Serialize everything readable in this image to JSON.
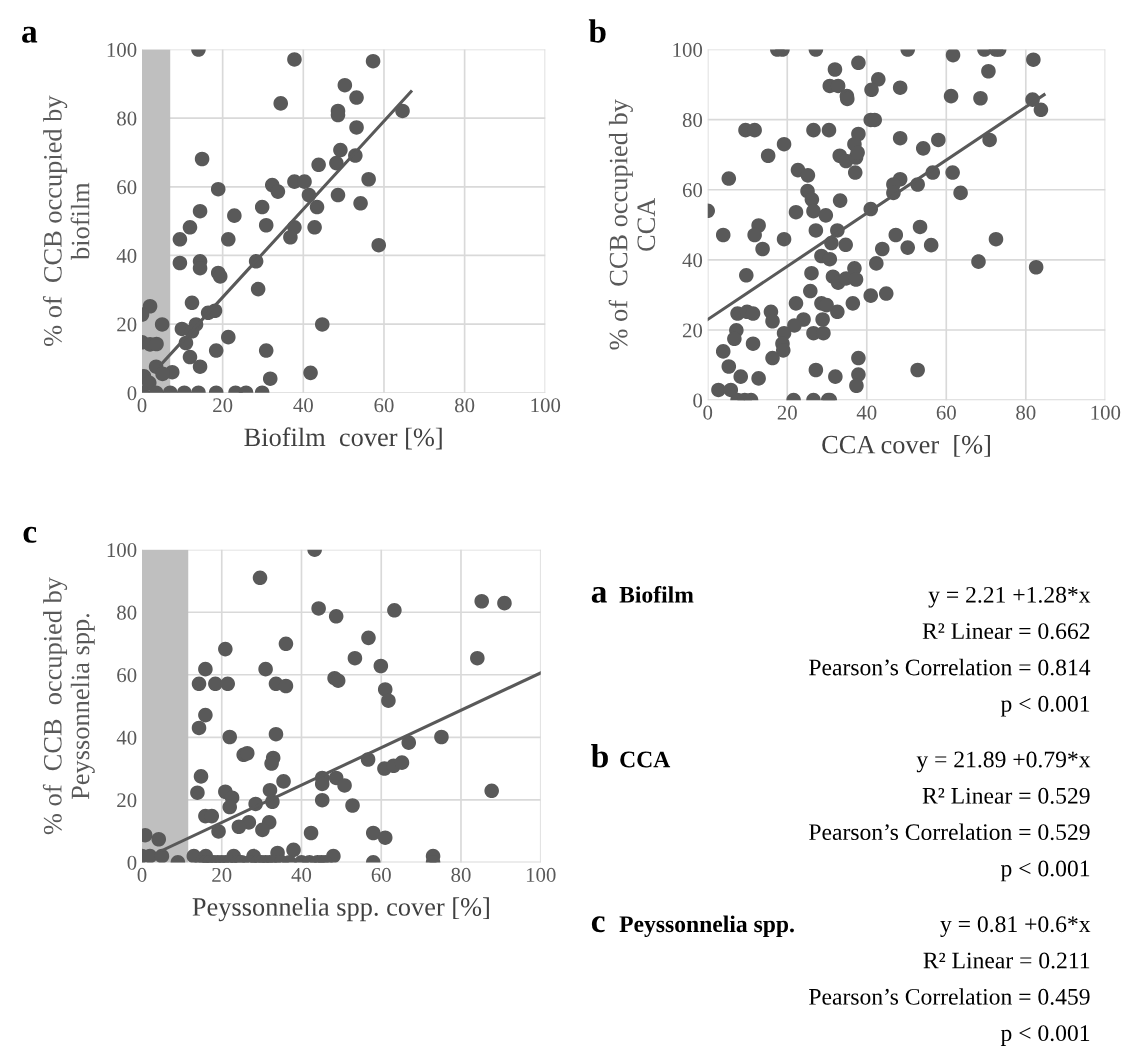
{
  "chart_data": [
    {
      "type": "scatter",
      "title": "a",
      "xlabel": "Biofilm  cover [%]",
      "ylabel": "% of  CCB occupied by\nbiofilm",
      "xlim": [
        0,
        100
      ],
      "ylim": [
        0,
        100
      ],
      "xticks": [
        0,
        20,
        40,
        60,
        80,
        100
      ],
      "yticks": [
        0,
        20,
        40,
        60,
        80,
        100
      ],
      "grid": true,
      "legend": false,
      "bands": [
        {
          "axis": "x",
          "from": 0,
          "to": 7,
          "color": "#bfbfbf"
        }
      ],
      "series": [
        {
          "type": "scatter",
          "marker": "circle",
          "color": "#595959",
          "x": [
            14.0,
            37.8,
            57.3,
            50.3,
            53.2,
            34.4,
            64.6,
            48.6,
            48.6,
            53.2,
            14.9,
            49.2,
            48.2,
            52.9,
            43.8,
            56.2,
            18.9,
            32.3,
            33.7,
            37.8,
            40.3,
            41.4,
            48.6,
            43.4,
            54.2,
            29.8,
            14.4,
            22.9,
            11.9,
            30.8,
            37.8,
            36.8,
            42.8,
            9.4,
            21.4,
            58.7,
            9.4,
            14.4,
            14.4,
            18.9,
            19.4,
            28.3,
            28.8,
            12.4,
            16.4,
            18.1,
            2.0,
            0,
            5.0,
            44.7,
            9.9,
            13.4,
            12.4,
            21.4,
            0,
            2.0,
            3.6,
            10.9,
            18.4,
            30.8,
            11.9,
            14.4,
            3.5,
            7.5,
            5.1,
            41.8,
            31.8,
            0.5,
            1.8,
            0,
            3.5,
            7,
            10.5,
            14,
            18.4,
            23.2,
            25.8,
            29.8
          ],
          "values": [
            100,
            97.1,
            96.6,
            89.6,
            86.0,
            84.3,
            82.1,
            82.1,
            80.9,
            77.3,
            68.1,
            70.7,
            66.9,
            69.1,
            66.4,
            62.2,
            59.3,
            60.5,
            58.6,
            61.5,
            61.5,
            57.6,
            57.6,
            54.1,
            55.2,
            54.1,
            52.9,
            51.6,
            48.2,
            48.8,
            48.2,
            45.3,
            48.2,
            44.7,
            44.7,
            43.0,
            37.8,
            38.3,
            36.3,
            34.9,
            33.9,
            38.3,
            30.2,
            26.2,
            23.3,
            23.9,
            25.2,
            22.8,
            19.9,
            19.9,
            18.6,
            19.9,
            17.9,
            16.2,
            14.7,
            14.1,
            14.2,
            14.5,
            12.3,
            12.3,
            10.4,
            7.6,
            7.6,
            6.0,
            5.5,
            5.8,
            4.1,
            4.8,
            2.9,
            0,
            0,
            0,
            0,
            0,
            0,
            0,
            0,
            0
          ]
        },
        {
          "type": "line",
          "color": "#595959",
          "x": [
            4.7,
            66.7
          ],
          "values": [
            8.2,
            87.7
          ]
        }
      ]
    },
    {
      "type": "scatter",
      "title": "b",
      "xlabel": "CCA cover  [%]",
      "ylabel": "% of  CCB occupied by\nCCA",
      "xlim": [
        0,
        100
      ],
      "ylim": [
        0,
        100
      ],
      "xticks": [
        0,
        20,
        40,
        60,
        80,
        100
      ],
      "yticks": [
        0,
        20,
        40,
        60,
        80,
        100
      ],
      "grid": true,
      "legend": false,
      "series": [
        {
          "type": "scatter",
          "marker": "circle",
          "color": "#595959",
          "x": [
            17.5,
            18.8,
            27.2,
            50.3,
            69.6,
            72.5,
            73.3,
            61.7,
            81.9,
            37.9,
            32.0,
            42.9,
            70.6,
            30.7,
            32.8,
            41.2,
            48.4,
            35.0,
            35.1,
            61.2,
            68.6,
            81.7,
            83.8,
            41.0,
            42.0,
            9.5,
            11.8,
            26.6,
            30.5,
            37.9,
            36.9,
            48.4,
            58.0,
            54.2,
            70.9,
            19.2,
            15.2,
            33.2,
            34.8,
            37.3,
            37.7,
            37.1,
            5.3,
            22.7,
            25.2,
            61.6,
            56.6,
            48.4,
            46.7,
            46.7,
            52.8,
            63.6,
            25.1,
            26.2,
            33.3,
            0,
            41.0,
            22.2,
            26.6,
            29.7,
            12.8,
            11.8,
            3.9,
            27.2,
            32.6,
            31.1,
            34.7,
            19.2,
            13.8,
            47.3,
            53.4,
            43.9,
            50.3,
            56.2,
            72.5,
            28.6,
            30.7,
            42.4,
            68.1,
            82.6,
            9.7,
            26.1,
            31.5,
            32.8,
            34.8,
            36.9,
            37.3,
            25.8,
            41.0,
            44.9,
            36.5,
            32.6,
            22.2,
            28.6,
            29.9,
            7.5,
            9.9,
            11.4,
            15.9,
            16.3,
            28.9,
            24.1,
            21.8,
            19.2,
            26.6,
            29.1,
            7.2,
            6.7,
            11.4,
            18.8,
            19.0,
            3.9,
            16.3,
            37.9,
            5.3,
            27.2,
            52.8,
            37.9,
            8.3,
            12.8,
            32.1,
            37.4,
            2.7,
            5.8,
            7.5,
            9.3,
            10.9,
            21.6,
            26.6,
            30.3,
            30.7
          ],
          "values": [
            100,
            100,
            100,
            100,
            100,
            100,
            100,
            98.4,
            97.1,
            96.2,
            94.3,
            91.5,
            93.8,
            89.6,
            89.6,
            88.5,
            89.1,
            86.7,
            85.9,
            86.7,
            86.1,
            85.7,
            82.8,
            79.9,
            79.9,
            77.0,
            77.0,
            77.0,
            77.0,
            75.9,
            73.0,
            74.7,
            74.2,
            71.8,
            74.2,
            73.0,
            69.7,
            69.7,
            68.2,
            69.2,
            70.6,
            64.9,
            63.2,
            65.6,
            64.1,
            64.9,
            64.9,
            63.0,
            61.5,
            59.1,
            61.5,
            59.1,
            59.6,
            57.2,
            56.9,
            54.0,
            54.5,
            53.6,
            53.9,
            52.7,
            49.8,
            47.1,
            47.1,
            48.4,
            48.4,
            44.8,
            44.3,
            45.9,
            43.1,
            47.1,
            49.4,
            43.1,
            43.5,
            44.2,
            45.9,
            41.1,
            40.2,
            39.0,
            39.5,
            37.9,
            35.6,
            36.2,
            35.2,
            33.5,
            34.7,
            37.6,
            34.4,
            31.1,
            29.8,
            30.4,
            27.6,
            25.2,
            27.6,
            27.6,
            27.1,
            24.7,
            25.2,
            24.7,
            25.2,
            22.5,
            23.0,
            23.0,
            21.3,
            19.1,
            19.1,
            19.1,
            19.9,
            17.5,
            16.1,
            16.1,
            14.2,
            13.9,
            12.0,
            12.0,
            9.6,
            8.6,
            8.6,
            7.3,
            6.7,
            6.2,
            6.7,
            4.1,
            2.9,
            2.9,
            0,
            0,
            0,
            0,
            0,
            0,
            0
          ]
        },
        {
          "type": "line",
          "color": "#595959",
          "x": [
            0,
            84.6
          ],
          "values": [
            23.0,
            87.1
          ]
        }
      ]
    },
    {
      "type": "scatter",
      "title": "c",
      "xlabel": "Peyssonnelia spp. cover [%]",
      "ylabel": "% of  CCB  occupied by\nPeyssonnelia spp.",
      "xlim": [
        0,
        100
      ],
      "ylim": [
        0,
        100
      ],
      "xticks": [
        0,
        20,
        40,
        60,
        80,
        100
      ],
      "yticks": [
        0,
        20,
        40,
        60,
        80,
        100
      ],
      "grid": true,
      "legend": false,
      "bands": [
        {
          "axis": "x",
          "from": 0,
          "to": 11.6,
          "color": "#bfbfbf"
        }
      ],
      "series": [
        {
          "type": "scatter",
          "marker": "circle",
          "color": "#595959",
          "x": [
            43.3,
            29.6,
            85.2,
            90.9,
            44.3,
            48.7,
            63.3,
            56.8,
            36.1,
            20.9,
            53.4,
            84.1,
            59.9,
            31.0,
            15.9,
            14.3,
            18.4,
            21.5,
            33.6,
            36.1,
            48.3,
            49.2,
            61.0,
            61.8,
            15.9,
            14.3,
            22.0,
            33.6,
            75.1,
            66.9,
            56.7,
            60.8,
            63.1,
            65.2,
            25.5,
            26.4,
            32.9,
            32.5,
            14.8,
            13.9,
            20.9,
            22.6,
            22.0,
            35.5,
            45.2,
            45.2,
            48.7,
            50.8,
            87.7,
            32.1,
            32.7,
            28.5,
            45.2,
            52.8,
            15.9,
            17.5,
            42.4,
            58.0,
            61.0,
            0.8,
            4.2,
            26.8,
            31.9,
            24.3,
            19.2,
            30.2,
            0,
            2,
            5,
            13,
            16,
            23,
            28,
            34,
            38,
            48,
            73,
            9,
            15,
            16,
            17,
            18,
            19,
            20,
            21,
            22,
            24,
            25,
            27,
            29,
            30,
            31,
            32,
            33,
            35,
            37,
            40,
            42,
            44,
            45,
            46,
            58,
            73
          ],
          "values": [
            100,
            91.0,
            83.5,
            82.9,
            81.2,
            78.7,
            80.6,
            71.8,
            69.9,
            68.2,
            65.3,
            65.3,
            62.8,
            61.8,
            61.8,
            57.1,
            57.1,
            57.1,
            57.1,
            56.4,
            58.9,
            58.1,
            55.3,
            51.7,
            47.1,
            43.0,
            40.1,
            41.0,
            40.1,
            38.3,
            32.9,
            30.0,
            30.9,
            31.9,
            34.4,
            34.9,
            33.4,
            31.6,
            27.5,
            22.3,
            22.6,
            20.7,
            17.7,
            25.9,
            27.0,
            25.1,
            27.0,
            24.6,
            22.9,
            23.1,
            19.4,
            18.7,
            19.9,
            18.2,
            14.8,
            14.8,
            9.4,
            9.4,
            7.9,
            8.7,
            7.4,
            12.8,
            12.8,
            11.4,
            9.9,
            10.4,
            2,
            2,
            2,
            2,
            2,
            2,
            2,
            3,
            4,
            2,
            2,
            0,
            0,
            0,
            0,
            0,
            0,
            0,
            0,
            0,
            0,
            0,
            0,
            0,
            0,
            0,
            0,
            0,
            0,
            0,
            0,
            0,
            0,
            0,
            0,
            0,
            0
          ]
        },
        {
          "type": "line",
          "color": "#595959",
          "x": [
            5,
            100
          ],
          "values": [
            3.8,
            60.6
          ]
        }
      ]
    },
    {
      "type": "other",
      "annotations": [
        "a",
        "Biofilm",
        "y = 2.21 +1.28*x",
        "R² Linear = 0.662",
        "Pearson’s Correlation = 0.814",
        "p < 0.001",
        "b",
        "CCA",
        "y = 21.89 +0.79*x",
        "R² Linear = 0.529",
        "Pearson’s Correlation = 0.529",
        "p < 0.001",
        "c",
        "Peyssonnelia spp.",
        "y = 0.81 +0.6*x",
        "R² Linear = 0.211",
        "Pearson’s Correlation = 0.459",
        "p < 0.001"
      ]
    }
  ]
}
